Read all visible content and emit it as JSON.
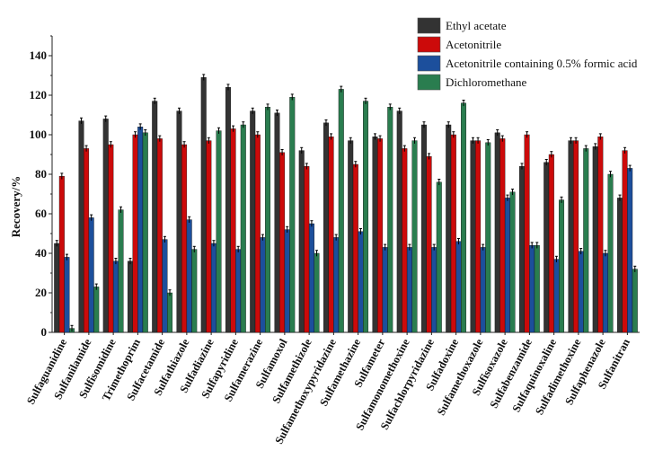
{
  "chart_data": {
    "type": "bar",
    "title": "",
    "xlabel": "",
    "ylabel": "Recovery/%",
    "ylim": [
      0,
      150
    ],
    "yticks": [
      0,
      20,
      40,
      60,
      80,
      100,
      120,
      140
    ],
    "legend_position": "top-right",
    "categories": [
      "Sulfaguanidine",
      "Sulfanilamide",
      "Sulfisomidine",
      "Trimethoprim",
      "Sulfacetamide",
      "Sulfathiazole",
      "Sulfadiazine",
      "Sulfapyridine",
      "Sulfamerazine",
      "Sulfamoxol",
      "Sulfamethizole",
      "Sulfamethoxypyridazine",
      "Sulfamethazine",
      "Sulfameter",
      "Sulfamonomethoxine",
      "Sulfachlorpyridazine",
      "Sulfadoxine",
      "Sulfamethoxazole",
      "Sulfisoxazole",
      "Sulfabenzamide",
      "Sulfaquinoxaline",
      "Sulfadimethoxine",
      "Sulfaphenazole",
      "Sulfanitran"
    ],
    "series": [
      {
        "name": "Ethyl acetate",
        "color": "#333333",
        "values": [
          45,
          107,
          108,
          36,
          117,
          112,
          129,
          124,
          112,
          111,
          92,
          106,
          97,
          99,
          112,
          105,
          105,
          97,
          101,
          84,
          86,
          97,
          94,
          68
        ]
      },
      {
        "name": "Acetonitrile",
        "color": "#cc0a0a",
        "values": [
          79,
          93,
          95,
          100,
          98,
          95,
          97,
          103,
          100,
          91,
          84,
          99,
          85,
          98,
          93,
          89,
          100,
          97,
          98,
          100,
          90,
          97,
          99,
          92
        ]
      },
      {
        "name": "Acetonitrile containing 0.5% formic acid",
        "color": "#1c4f9c",
        "values": [
          38,
          58,
          36,
          104,
          47,
          57,
          45,
          42,
          48,
          52,
          55,
          48,
          51,
          43,
          43,
          43,
          46,
          43,
          68,
          44,
          37,
          41,
          40,
          83
        ]
      },
      {
        "name": "Dichloromethane",
        "color": "#2a7d4f",
        "values": [
          2,
          23,
          62,
          101,
          20,
          42,
          102,
          105,
          114,
          119,
          40,
          123,
          117,
          114,
          97,
          76,
          116,
          96,
          71,
          44,
          67,
          93,
          80,
          32
        ]
      }
    ],
    "error_bar": 1.5
  }
}
